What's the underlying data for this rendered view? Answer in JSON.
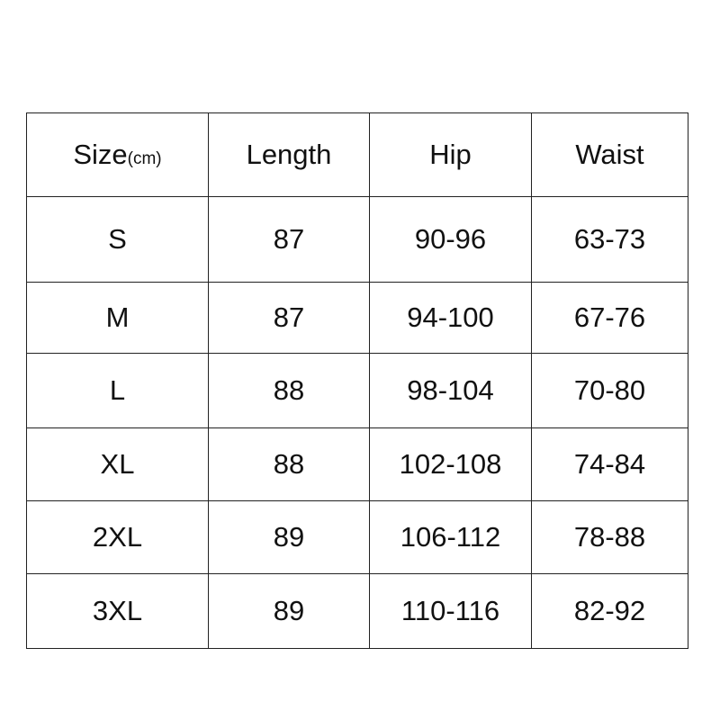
{
  "table": {
    "headers": {
      "size": "Size",
      "size_unit": "(cm)",
      "length": "Length",
      "hip": "Hip",
      "waist": "Waist"
    },
    "rows": [
      {
        "size": "S",
        "length": "87",
        "hip": "90-96",
        "waist": "63-73"
      },
      {
        "size": "M",
        "length": "87",
        "hip": "94-100",
        "waist": "67-76"
      },
      {
        "size": "L",
        "length": "88",
        "hip": "98-104",
        "waist": "70-80"
      },
      {
        "size": "XL",
        "length": "88",
        "hip": "102-108",
        "waist": "74-84"
      },
      {
        "size": "2XL",
        "length": "89",
        "hip": "106-112",
        "waist": "78-88"
      },
      {
        "size": "3XL",
        "length": "89",
        "hip": "110-116",
        "waist": "82-92"
      }
    ]
  }
}
